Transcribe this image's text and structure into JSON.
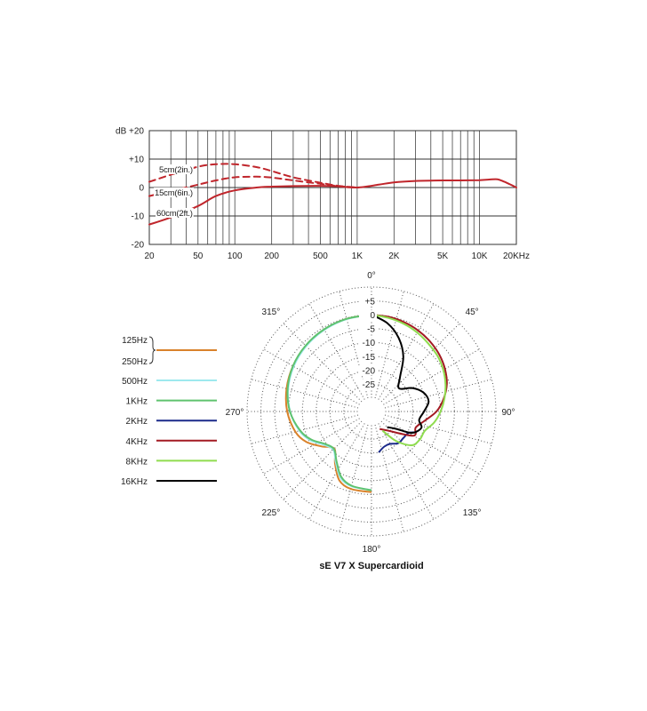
{
  "chart_data": [
    {
      "type": "line",
      "title": "",
      "xlabel": "",
      "ylabel": "",
      "x_scale": "log",
      "xlim": [
        20,
        20000
      ],
      "ylim": [
        -20,
        20
      ],
      "grid": true,
      "x_ticks": [
        {
          "value": 20,
          "label": "20"
        },
        {
          "value": 50,
          "label": "50"
        },
        {
          "value": 100,
          "label": "100"
        },
        {
          "value": 200,
          "label": "200"
        },
        {
          "value": 500,
          "label": "500"
        },
        {
          "value": 1000,
          "label": "1K"
        },
        {
          "value": 2000,
          "label": "2K"
        },
        {
          "value": 5000,
          "label": "5K"
        },
        {
          "value": 10000,
          "label": "10K"
        },
        {
          "value": 20000,
          "label": "20KHz"
        }
      ],
      "y_ticks": [
        {
          "value": 20,
          "label": "dB +20"
        },
        {
          "value": 10,
          "label": "+10"
        },
        {
          "value": 0,
          "label": "0"
        },
        {
          "value": -10,
          "label": "-10"
        },
        {
          "value": -20,
          "label": "-20"
        }
      ],
      "line_color": "#c0262c",
      "series": [
        {
          "name": "5cm(2in.)",
          "style": "dashed",
          "x": [
            20,
            30,
            50,
            70,
            100,
            150,
            200,
            300,
            500,
            700,
            1000
          ],
          "y": [
            2,
            4.5,
            7.3,
            8.2,
            8.2,
            7.2,
            5.8,
            3.6,
            1.7,
            0.6,
            0
          ]
        },
        {
          "name": "15cm(6in.)",
          "style": "dashed",
          "x": [
            20,
            30,
            50,
            70,
            100,
            150,
            200,
            300,
            500,
            700,
            1000
          ],
          "y": [
            -3,
            -1.2,
            1,
            2.5,
            3.6,
            3.8,
            3.5,
            2.5,
            1.3,
            0.5,
            0
          ]
        },
        {
          "name": "60cm(2ft.)",
          "style": "solid",
          "x": [
            20,
            30,
            50,
            70,
            100,
            150,
            200,
            300,
            500,
            700,
            1000,
            1500,
            2000,
            3000,
            5000,
            7000,
            10000,
            12000,
            14000,
            16000,
            20000
          ],
          "y": [
            -13,
            -10.5,
            -6.5,
            -3,
            -1,
            0,
            0.3,
            0.5,
            0.6,
            0.4,
            0,
            1,
            1.8,
            2.3,
            2.5,
            2.5,
            2.6,
            2.8,
            2.9,
            2,
            0
          ]
        }
      ]
    },
    {
      "type": "polar",
      "title": "sE V7 X  Supercardioid",
      "radial_ticks": [
        "+5",
        "0",
        "-5",
        "-10",
        "-15",
        "-20",
        "-25"
      ],
      "radial_values": [
        5,
        0,
        -5,
        -10,
        -15,
        -20,
        -25
      ],
      "angle_labels": [
        {
          "deg": 0,
          "label": "0°"
        },
        {
          "deg": 45,
          "label": "45°"
        },
        {
          "deg": 90,
          "label": "90°"
        },
        {
          "deg": 135,
          "label": "135°"
        },
        {
          "deg": 180,
          "label": "180°"
        },
        {
          "deg": 225,
          "label": "225°"
        },
        {
          "deg": 270,
          "label": "270°"
        },
        {
          "deg": 315,
          "label": "315°"
        }
      ],
      "rlim": [
        -35,
        10
      ],
      "legend": {
        "placement": "left",
        "brace_labels": [
          "125Hz",
          "250Hz"
        ],
        "entries": [
          {
            "label": "500Hz",
            "color": "#9ee9ee"
          },
          {
            "label": "1KHz",
            "color": "#5fc26e"
          },
          {
            "label": "2KHz",
            "color": "#1b2a8a"
          },
          {
            "label": "4KHz",
            "color": "#a31a22"
          },
          {
            "label": "8KHz",
            "color": "#8fdc4f"
          },
          {
            "label": "16KHz",
            "color": "#000000"
          }
        ],
        "brace_color": "#d9822b"
      },
      "series": [
        {
          "name": "125Hz/250Hz",
          "color": "#d9822b",
          "side": "left",
          "angles": [
            0,
            15,
            30,
            45,
            60,
            75,
            90,
            105,
            115,
            125,
            135,
            145,
            155,
            165,
            180
          ],
          "values": [
            0,
            -0.3,
            -0.8,
            -1.4,
            -2.2,
            -3.2,
            -4.5,
            -6.5,
            -9,
            -13,
            -16,
            -12,
            -7.5,
            -6,
            -5.8
          ]
        },
        {
          "name": "500Hz",
          "color": "#9ee9ee",
          "side": "left",
          "angles": [
            0,
            15,
            30,
            45,
            60,
            75,
            90,
            105,
            115,
            125,
            135,
            145,
            155,
            165,
            180
          ],
          "values": [
            0,
            -0.4,
            -0.9,
            -1.6,
            -2.5,
            -3.8,
            -5.6,
            -8,
            -10.5,
            -14,
            -15.5,
            -12.5,
            -8.5,
            -7,
            -6.6
          ]
        },
        {
          "name": "1KHz",
          "color": "#5fc26e",
          "side": "left",
          "angles": [
            0,
            15,
            30,
            45,
            60,
            75,
            90,
            105,
            115,
            125,
            135,
            145,
            155,
            165,
            180
          ],
          "values": [
            0,
            -0.3,
            -0.7,
            -1.3,
            -2.2,
            -3.6,
            -5.5,
            -8.3,
            -11,
            -14.5,
            -15.8,
            -13,
            -9,
            -7.2,
            -6.5
          ]
        },
        {
          "name": "2KHz",
          "color": "#1b2a8a",
          "side": "right",
          "angles": [
            115,
            120,
            130,
            140,
            150,
            160,
            170
          ],
          "values": [
            -17,
            -19.5,
            -20,
            -20,
            -21.5,
            -21.5,
            -20
          ]
        },
        {
          "name": "4KHz",
          "color": "#a31a22",
          "side": "right",
          "angles": [
            0,
            10,
            20,
            30,
            40,
            50,
            60,
            70,
            80,
            90,
            100,
            110,
            120,
            140,
            155
          ],
          "values": [
            0,
            -0.2,
            -0.6,
            -1.2,
            -2,
            -3,
            -4.3,
            -6,
            -8.5,
            -11.5,
            -15.5,
            -18,
            -17.5,
            -26,
            -28
          ]
        },
        {
          "name": "8KHz",
          "color": "#8fdc4f",
          "side": "right",
          "angles": [
            0,
            10,
            20,
            30,
            40,
            50,
            60,
            70,
            80,
            90,
            100,
            110,
            120,
            130,
            140,
            150
          ],
          "values": [
            0,
            -0.6,
            -1.2,
            -2,
            -3,
            -3.8,
            -5,
            -6.5,
            -8.2,
            -10,
            -12,
            -14.5,
            -14.8,
            -16,
            -21,
            -27
          ]
        },
        {
          "name": "16KHz",
          "color": "#000000",
          "side": "right",
          "angles": [
            0,
            10,
            20,
            30,
            40,
            50,
            60,
            70,
            80,
            90,
            100,
            108,
            118,
            125,
            135
          ],
          "values": [
            0,
            -2.5,
            -6.5,
            -12,
            -19,
            -22,
            -18,
            -15,
            -14,
            -16,
            -17.5,
            -16,
            -18.5,
            -24,
            -27
          ]
        }
      ]
    }
  ]
}
